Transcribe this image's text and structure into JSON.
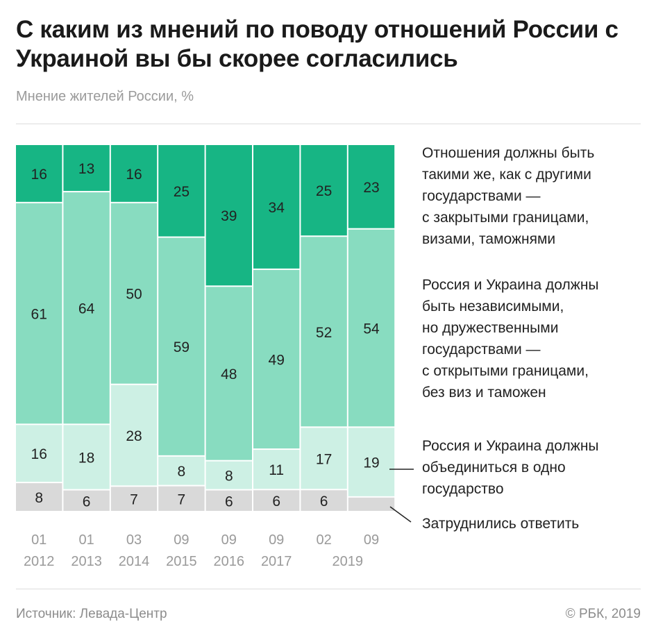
{
  "title": "С каким из мнений по поводу отношений России с Украиной вы бы скорее согласились",
  "subtitle": "Мнение жителей России, %",
  "footer": {
    "source": "Источник: Левада-Центр",
    "copyright": "© РБК, 2019"
  },
  "chart_data": {
    "type": "bar",
    "stacked": true,
    "title": "С каким из мнений по поводу отношений России с Украиной вы бы скорее согласились",
    "subtitle": "Мнение жителей России, %",
    "categories": [
      {
        "month": "01",
        "year": "2012"
      },
      {
        "month": "01",
        "year": "2013"
      },
      {
        "month": "03",
        "year": "2014"
      },
      {
        "month": "09",
        "year": "2015"
      },
      {
        "month": "09",
        "year": "2016"
      },
      {
        "month": "09",
        "year": "2017"
      },
      {
        "month": "02",
        "year": "2019"
      },
      {
        "month": "09",
        "year": "2019"
      }
    ],
    "series": [
      {
        "name": "Отношения должны быть такими же, как с другими государствами — с закрытыми границами, визами, таможнями",
        "lines": [
          "Отношения должны быть",
          "такими же, как с другими",
          "государствами —",
          "с закрытыми границами,",
          "визами, таможнями"
        ],
        "color": "#17b584",
        "values": [
          16,
          13,
          16,
          25,
          39,
          34,
          25,
          23
        ]
      },
      {
        "name": "Россия и Украина должны быть независимыми, но дружественными государствами — с открытыми границами, без виз и таможен",
        "lines": [
          "Россия и Украина должны",
          "быть независимыми,",
          "но дружественными",
          "государствами —",
          "с открытыми границами,",
          "без виз и таможен"
        ],
        "color": "#88dcc0",
        "values": [
          61,
          64,
          50,
          59,
          48,
          49,
          52,
          54
        ]
      },
      {
        "name": "Россия и Украина должны объединиться в одно государство",
        "lines": [
          "Россия и Украина должны",
          "объединиться в одно",
          "государство"
        ],
        "color": "#cdf0e4",
        "values": [
          16,
          18,
          28,
          8,
          8,
          11,
          17,
          19
        ]
      },
      {
        "name": "Затруднились ответить",
        "lines": [
          "Затруднились ответить"
        ],
        "color": "#d9d9d9",
        "values": [
          8,
          6,
          7,
          7,
          6,
          6,
          6,
          null
        ]
      }
    ],
    "ylim": [
      0,
      100
    ],
    "grid": false,
    "legend": "right"
  }
}
